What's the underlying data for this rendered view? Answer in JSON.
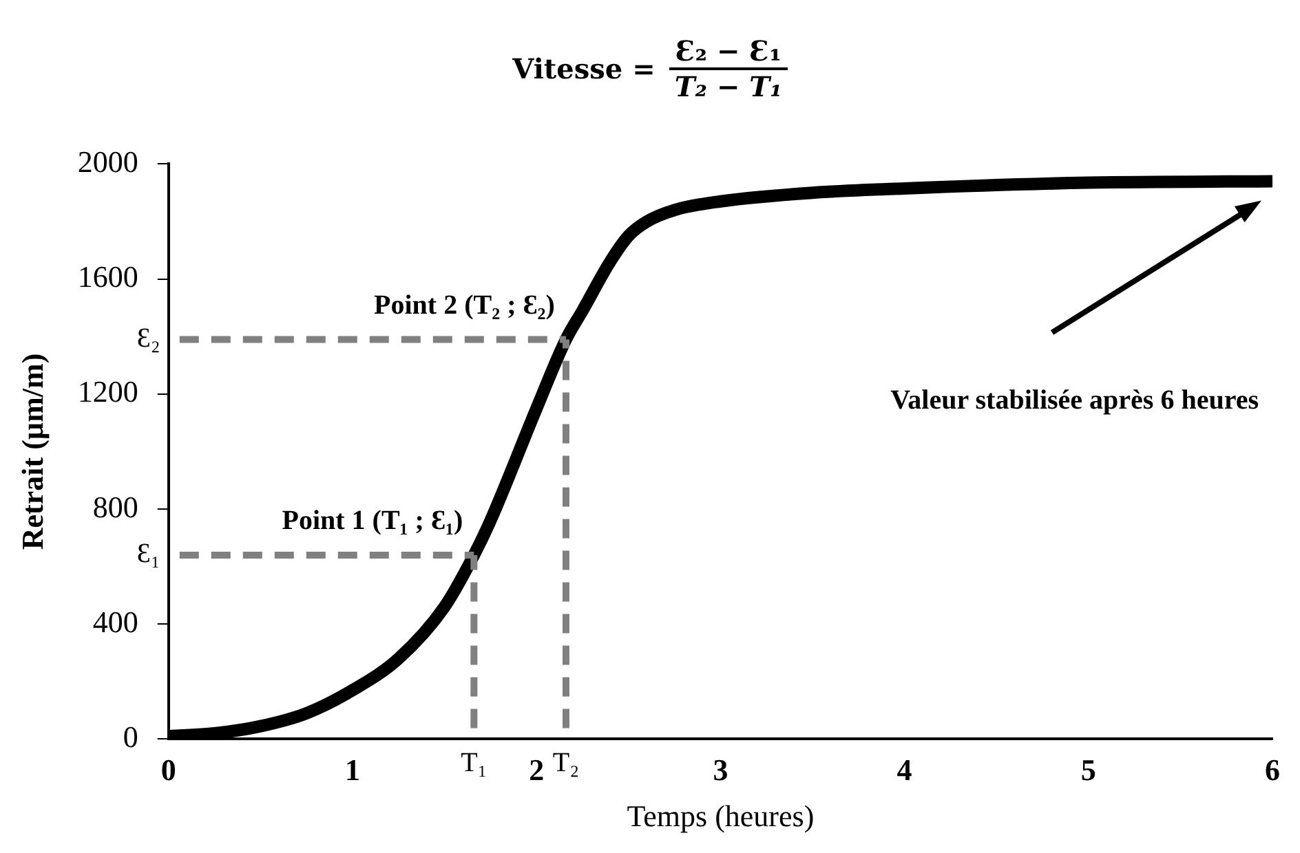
{
  "chart_data": {
    "type": "line",
    "title": "Vitesse =",
    "xlabel": "Temps (heures)",
    "ylabel": "Retrait (µm/m)",
    "x": [
      0,
      0.25,
      0.5,
      0.75,
      1,
      1.25,
      1.5,
      1.66,
      1.75,
      2,
      2.16,
      2.25,
      2.4,
      2.5,
      2.6,
      2.75,
      3,
      3.5,
      4,
      5,
      6
    ],
    "series": [
      {
        "color": "#000000",
        "values": [
          10,
          20,
          45,
          90,
          170,
          280,
          460,
          640,
          760,
          1150,
          1390,
          1490,
          1660,
          1750,
          1800,
          1840,
          1870,
          1900,
          1915,
          1935,
          1940
        ]
      }
    ],
    "xlim": [
      0,
      6
    ],
    "xticks": [
      0,
      1,
      2,
      3,
      4,
      5,
      6
    ],
    "ylim": [
      0,
      2000
    ],
    "yticks": [
      0,
      400,
      800,
      1200,
      1600,
      2000
    ],
    "grid": false,
    "legend": false,
    "marker": "none",
    "line_style": "solid",
    "ref_lines": [
      {
        "axis": "y",
        "value": 640,
        "label": "Ɛ₁",
        "color": "#808080",
        "line_style": "dashed"
      },
      {
        "axis": "y",
        "value": 1390,
        "label": "Ɛ₂",
        "color": "#808080",
        "line_style": "dashed"
      },
      {
        "axis": "x",
        "value": 1.66,
        "label": "T₁",
        "color": "#808080",
        "line_style": "dashed"
      },
      {
        "axis": "x",
        "value": 2.16,
        "label": "T₂",
        "color": "#808080",
        "line_style": "dashed"
      }
    ],
    "annotations": [
      "Ɛ₂ − Ɛ₁",
      "T₂ − T₁",
      {
        "text": "Point 1 (T₁ ; Ɛ₁)",
        "x": 1.66,
        "y": 640
      },
      {
        "text": "Point 2 (T₂ ; Ɛ₂)",
        "x": 2.16,
        "y": 1390
      },
      "Valeur stabilisée après 6 heures"
    ]
  }
}
